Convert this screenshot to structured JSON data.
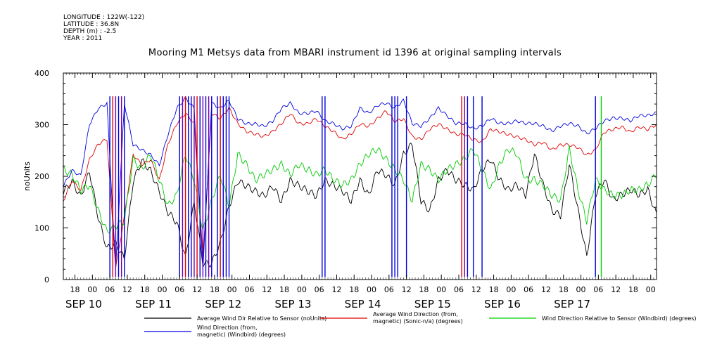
{
  "header": {
    "lines": [
      "LONGITUDE : 122W(-122)",
      "LATITUDE : 36.8N",
      "DEPTH (m) : -2.5",
      "YEAR : 2011"
    ]
  },
  "chart_data": {
    "type": "line",
    "title": "Mooring M1 Metsys data from MBARI instrument id 1396 at original sampling intervals",
    "ylabel": "noUnits",
    "ylim": [
      0,
      400
    ],
    "yticks": [
      0,
      100,
      200,
      300,
      400
    ],
    "xlim_hours": [
      -10,
      194
    ],
    "hour_ticks": [
      {
        "h": -6,
        "label": "18"
      },
      {
        "h": 0,
        "label": "00"
      },
      {
        "h": 6,
        "label": "06"
      },
      {
        "h": 12,
        "label": "12"
      },
      {
        "h": 18,
        "label": "18"
      },
      {
        "h": 24,
        "label": "00"
      },
      {
        "h": 30,
        "label": "06"
      },
      {
        "h": 36,
        "label": "12"
      },
      {
        "h": 42,
        "label": "18"
      },
      {
        "h": 48,
        "label": "00"
      },
      {
        "h": 54,
        "label": "06"
      },
      {
        "h": 60,
        "label": "12"
      },
      {
        "h": 66,
        "label": "18"
      },
      {
        "h": 72,
        "label": "00"
      },
      {
        "h": 78,
        "label": "06"
      },
      {
        "h": 84,
        "label": "12"
      },
      {
        "h": 90,
        "label": "18"
      },
      {
        "h": 96,
        "label": "00"
      },
      {
        "h": 102,
        "label": "06"
      },
      {
        "h": 108,
        "label": "12"
      },
      {
        "h": 114,
        "label": "18"
      },
      {
        "h": 120,
        "label": "00"
      },
      {
        "h": 126,
        "label": "06"
      },
      {
        "h": 132,
        "label": "12"
      },
      {
        "h": 138,
        "label": "18"
      },
      {
        "h": 144,
        "label": "00"
      },
      {
        "h": 150,
        "label": "06"
      },
      {
        "h": 156,
        "label": "12"
      },
      {
        "h": 162,
        "label": "18"
      },
      {
        "h": 168,
        "label": "00"
      },
      {
        "h": 174,
        "label": "06"
      },
      {
        "h": 180,
        "label": "12"
      },
      {
        "h": 186,
        "label": "18"
      },
      {
        "h": 192,
        "label": "00"
      }
    ],
    "date_labels": [
      {
        "h": -3,
        "label": "SEP 10"
      },
      {
        "h": 21,
        "label": "SEP 11"
      },
      {
        "h": 45,
        "label": "SEP 12"
      },
      {
        "h": 69,
        "label": "SEP 13"
      },
      {
        "h": 93,
        "label": "SEP 14"
      },
      {
        "h": 117,
        "label": "SEP 15"
      },
      {
        "h": 141,
        "label": "SEP 16"
      },
      {
        "h": 165,
        "label": "SEP 17"
      }
    ],
    "series": [
      {
        "name": "Average Wind Dir Relative to Sensor (noUnits)",
        "color": "#000000",
        "x": [
          -10,
          -7,
          -4,
          -1,
          2,
          5,
          8,
          11,
          14,
          17,
          20,
          23,
          26,
          29,
          32,
          35,
          38,
          41,
          44,
          47,
          50,
          53,
          56,
          59,
          62,
          65,
          68,
          71,
          74,
          77,
          80,
          83,
          86,
          89,
          92,
          95,
          98,
          101,
          104,
          107,
          110,
          113,
          116,
          119,
          122,
          125,
          128,
          131,
          134,
          137,
          140,
          143,
          146,
          149,
          152,
          155,
          158,
          161,
          164,
          167,
          170,
          173,
          176,
          179,
          182,
          185,
          188,
          191,
          194
        ],
        "y": [
          170,
          190,
          160,
          210,
          120,
          60,
          70,
          40,
          190,
          230,
          210,
          170,
          130,
          110,
          40,
          150,
          30,
          30,
          70,
          140,
          190,
          180,
          170,
          160,
          180,
          150,
          190,
          180,
          170,
          160,
          190,
          180,
          170,
          150,
          190,
          160,
          210,
          200,
          180,
          240,
          260,
          150,
          130,
          190,
          210,
          190,
          180,
          170,
          210,
          230,
          190,
          170,
          180,
          160,
          240,
          180,
          130,
          120,
          220,
          130,
          40,
          160,
          190,
          150,
          160,
          170,
          160,
          170,
          120
        ]
      },
      {
        "name": "Average Wind Direction (from, magnetic) (Sonic-n/a) (degrees)",
        "color": "#e00000",
        "x": [
          -10,
          -7,
          -4,
          -1,
          2,
          5,
          8,
          11,
          14,
          17,
          20,
          23,
          26,
          29,
          32,
          35,
          38,
          41,
          44,
          47,
          50,
          53,
          56,
          59,
          62,
          65,
          68,
          71,
          74,
          77,
          80,
          83,
          86,
          89,
          92,
          95,
          98,
          101,
          104,
          107,
          110,
          113,
          116,
          119,
          122,
          125,
          128,
          131,
          134,
          137,
          140,
          143,
          146,
          149,
          152,
          155,
          158,
          161,
          164,
          167,
          170,
          173,
          176,
          179,
          182,
          185,
          188,
          191,
          194
        ],
        "y": [
          150,
          190,
          170,
          230,
          260,
          270,
          20,
          120,
          240,
          220,
          230,
          190,
          260,
          300,
          320,
          300,
          40,
          320,
          310,
          330,
          300,
          285,
          280,
          275,
          285,
          300,
          320,
          300,
          300,
          310,
          295,
          285,
          270,
          280,
          300,
          295,
          310,
          325,
          305,
          310,
          275,
          270,
          290,
          300,
          290,
          280,
          280,
          270,
          265,
          290,
          285,
          280,
          275,
          270,
          260,
          265,
          250,
          260,
          260,
          255,
          240,
          250,
          285,
          290,
          295,
          285,
          295,
          290,
          300
        ]
      },
      {
        "name": "Wind Direction Relative to Sensor (Windbird) (degrees)",
        "color": "#00cc00",
        "x": [
          -10,
          -7,
          -4,
          -1,
          2,
          5,
          8,
          11,
          14,
          17,
          20,
          23,
          26,
          29,
          32,
          35,
          38,
          41,
          44,
          47,
          50,
          53,
          56,
          59,
          62,
          65,
          68,
          71,
          74,
          77,
          80,
          83,
          86,
          89,
          92,
          95,
          98,
          101,
          104,
          107,
          110,
          113,
          116,
          119,
          122,
          125,
          128,
          131,
          134,
          137,
          140,
          143,
          146,
          149,
          152,
          155,
          158,
          161,
          164,
          167,
          170,
          173,
          176,
          179,
          182,
          185,
          188,
          191,
          194
        ],
        "y": [
          220,
          210,
          180,
          190,
          140,
          100,
          110,
          120,
          240,
          220,
          250,
          200,
          150,
          170,
          250,
          200,
          100,
          160,
          210,
          150,
          250,
          230,
          200,
          210,
          220,
          230,
          210,
          230,
          220,
          210,
          220,
          200,
          190,
          200,
          230,
          250,
          260,
          240,
          220,
          200,
          160,
          230,
          220,
          200,
          220,
          230,
          240,
          260,
          220,
          180,
          230,
          260,
          250,
          200,
          200,
          190,
          170,
          160,
          260,
          180,
          120,
          200,
          180,
          170,
          170,
          180,
          180,
          190,
          210
        ]
      },
      {
        "name": "Wind Direction (from, magnetic) (Windbird) (degrees)",
        "color": "#0000dd",
        "x": [
          -10,
          -7,
          -4,
          -1,
          2,
          5,
          8,
          11,
          14,
          17,
          20,
          23,
          26,
          29,
          32,
          35,
          38,
          41,
          44,
          47,
          50,
          53,
          56,
          59,
          62,
          65,
          68,
          71,
          74,
          77,
          80,
          83,
          86,
          89,
          92,
          95,
          98,
          101,
          104,
          107,
          110,
          113,
          116,
          119,
          122,
          125,
          128,
          131,
          134,
          137,
          140,
          143,
          146,
          149,
          152,
          155,
          158,
          161,
          164,
          167,
          170,
          173,
          176,
          179,
          182,
          185,
          188,
          191,
          194
        ],
        "y": [
          180,
          210,
          200,
          300,
          330,
          340,
          20,
          340,
          260,
          250,
          240,
          220,
          280,
          330,
          350,
          330,
          20,
          340,
          330,
          345,
          310,
          300,
          300,
          295,
          305,
          330,
          340,
          320,
          320,
          325,
          305,
          300,
          290,
          295,
          330,
          320,
          335,
          340,
          330,
          345,
          300,
          295,
          310,
          330,
          315,
          300,
          300,
          290,
          295,
          310,
          300,
          300,
          305,
          300,
          300,
          295,
          285,
          295,
          300,
          295,
          280,
          290,
          305,
          310,
          310,
          305,
          315,
          315,
          320
        ]
      }
    ],
    "spikes": [
      {
        "h": 6,
        "color": "#0000dd"
      },
      {
        "h": 7,
        "color": "#e00000"
      },
      {
        "h": 8,
        "color": "#7000aa"
      },
      {
        "h": 9,
        "color": "#0000dd"
      },
      {
        "h": 10,
        "color": "#7000aa"
      },
      {
        "h": 11,
        "color": "#0000dd"
      },
      {
        "h": 30,
        "color": "#0000dd"
      },
      {
        "h": 31,
        "color": "#7000aa"
      },
      {
        "h": 32,
        "color": "#e00000"
      },
      {
        "h": 33,
        "color": "#0000dd"
      },
      {
        "h": 34,
        "color": "#0000dd"
      },
      {
        "h": 35,
        "color": "#7000aa"
      },
      {
        "h": 36,
        "color": "#e00000"
      },
      {
        "h": 37,
        "color": "#0000dd"
      },
      {
        "h": 38,
        "color": "#7000aa"
      },
      {
        "h": 39,
        "color": "#0000dd"
      },
      {
        "h": 40,
        "color": "#7000aa"
      },
      {
        "h": 41,
        "color": "#0000dd"
      },
      {
        "h": 43,
        "color": "#0000dd"
      },
      {
        "h": 44,
        "color": "#e00000"
      },
      {
        "h": 45,
        "color": "#0000dd"
      },
      {
        "h": 46,
        "color": "#0000dd"
      },
      {
        "h": 47,
        "color": "#0000dd"
      },
      {
        "h": 79,
        "color": "#0000dd"
      },
      {
        "h": 80,
        "color": "#0000dd"
      },
      {
        "h": 103,
        "color": "#0000dd"
      },
      {
        "h": 104,
        "color": "#0000dd"
      },
      {
        "h": 105,
        "color": "#0000dd"
      },
      {
        "h": 108,
        "color": "#0000dd"
      },
      {
        "h": 127,
        "color": "#e00000"
      },
      {
        "h": 128,
        "color": "#7000aa"
      },
      {
        "h": 129,
        "color": "#0000dd"
      },
      {
        "h": 131,
        "color": "#0000dd"
      },
      {
        "h": 134,
        "color": "#0000dd"
      },
      {
        "h": 173,
        "color": "#0000dd"
      },
      {
        "h": 175,
        "color": "#00cc00"
      }
    ],
    "legend": [
      {
        "label": "Average Wind Dir Relative to Sensor (noUnits)",
        "color": "#000000"
      },
      {
        "label": "Average Wind Direction (from,",
        "label2": "magnetic) (Sonic-n/a) (degrees)",
        "color": "#e00000"
      },
      {
        "label": "Wind Direction Relative to Sensor (Windbird) (degrees)",
        "color": "#00cc00"
      },
      {
        "label": "Wind Direction (from,",
        "label2": "magnetic) (Windbird) (degrees)",
        "color": "#0000dd"
      }
    ]
  }
}
